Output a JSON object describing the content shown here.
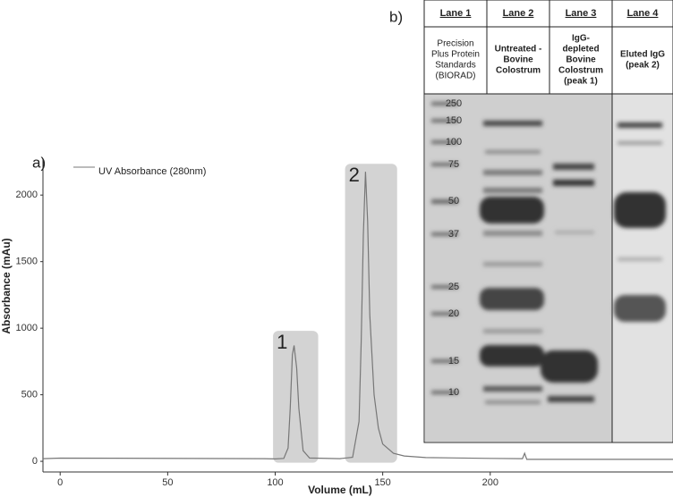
{
  "chart_data": {
    "type": "line",
    "panel_label": "a)",
    "xlabel": "Volume (mL)",
    "ylabel": "Absorbance (mAu)",
    "xlim": [
      -8,
      285
    ],
    "ylim": [
      -80,
      2270
    ],
    "xticks": [
      0,
      50,
      100,
      150,
      200
    ],
    "yticks": [
      0,
      500,
      1000,
      1500,
      2000
    ],
    "series": [
      {
        "name": "UV Absorbance (280nm)",
        "color": "#777777",
        "x": [
          -8,
          0,
          95,
          100,
          104,
          106,
          107,
          108,
          108.8,
          110,
          111,
          113,
          116,
          130,
          136,
          139,
          140,
          141,
          142,
          143,
          144,
          146,
          148,
          150,
          155,
          160,
          170,
          200,
          215,
          216,
          217,
          285
        ],
        "values": [
          20,
          24,
          20,
          18,
          22,
          100,
          400,
          800,
          870,
          700,
          400,
          80,
          25,
          20,
          30,
          300,
          900,
          1700,
          2175,
          1800,
          1100,
          500,
          250,
          130,
          60,
          40,
          28,
          22,
          20,
          60,
          15,
          15
        ]
      }
    ],
    "legend": "upper left",
    "regions": [
      {
        "label": "1",
        "x": [
          99,
          120
        ],
        "y": [
          -10,
          980
        ]
      },
      {
        "label": "2",
        "x": [
          132.5,
          156.7
        ],
        "y": [
          -10,
          2235
        ]
      }
    ]
  },
  "gel": {
    "panel_label": "b)",
    "lanes": [
      {
        "title": "Lane 1",
        "description": [
          "Precision",
          "Plus Protein",
          "Standards",
          "(BIORAD)"
        ]
      },
      {
        "title": "Lane 2",
        "description": [
          "Untreated -",
          "Bovine",
          "Colostrum"
        ]
      },
      {
        "title": "Lane 3",
        "description": [
          "IgG-",
          "depleted",
          "Bovine",
          "Colostrum",
          "(peak 1)"
        ]
      },
      {
        "title": "Lane 4",
        "description": [
          "Eluted IgG",
          "(peak 2)"
        ]
      }
    ],
    "markers": [
      "250",
      "150",
      "100",
      "75",
      "50",
      "37",
      "25",
      "20",
      "15",
      "10"
    ]
  }
}
